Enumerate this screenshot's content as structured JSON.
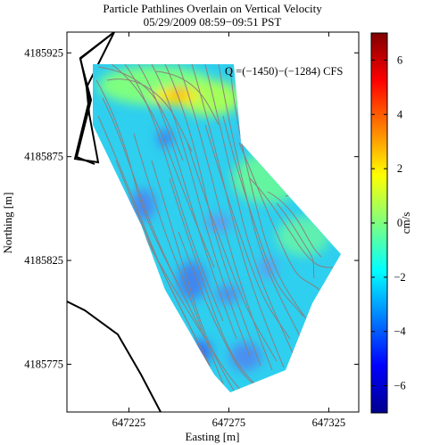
{
  "chart_data": {
    "type": "heatmap",
    "title": "Particle Pathlines Overlain on Vertical Velocity",
    "subtitle": "05/29/2009 08:59−09:51 PST",
    "xlabel": "Easting [m]",
    "ylabel": "Northing [m]",
    "xlim": [
      647194,
      647340
    ],
    "ylim": [
      4185752,
      4185935
    ],
    "x_ticks": [
      647225,
      647275,
      647325
    ],
    "x_tick_labels": [
      "647225",
      "647275",
      "647325"
    ],
    "y_ticks": [
      4185775,
      4185825,
      4185875,
      4185925
    ],
    "y_tick_labels": [
      "4185775",
      "4185825",
      "4185875",
      "4185925"
    ],
    "annotation": "Q =(−1450)−(−1284) CFS",
    "colorbar": {
      "label": "cm/s",
      "min": -7,
      "max": 7,
      "ticks": [
        6,
        4,
        2,
        0,
        -2,
        -4,
        -6
      ],
      "tick_labels": [
        "6",
        "4",
        "2",
        "0",
        "−2",
        "−4",
        "−6"
      ],
      "colormap": "jet"
    },
    "field_description_values": {
      "background_value_cm_s": -1,
      "high_spot_value_cm_s": 3,
      "low_spot_value_cm_s": -4
    },
    "grid": false,
    "colors": {
      "pathline": "#8c7d7d",
      "shoreline": "#000000",
      "jet_low": "#00008f",
      "jet_mid": "#7fff7f",
      "jet_high": "#800000"
    }
  }
}
